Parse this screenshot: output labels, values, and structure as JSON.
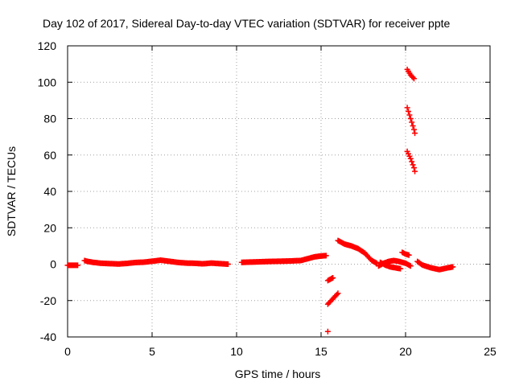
{
  "chart_data": {
    "type": "scatter",
    "title": "Day 102 of 2017, Sidereal Day-to-day VTEC variation (SDTVAR) for receiver ppte",
    "xlabel": "GPS time / hours",
    "ylabel": "SDTVAR / TECUs",
    "xlim": [
      0,
      25
    ],
    "ylim": [
      -40,
      120
    ],
    "xticks": [
      "0",
      "5",
      "10",
      "15",
      "20",
      "25"
    ],
    "yticks": [
      "-40",
      "-20",
      "0",
      "20",
      "40",
      "60",
      "80",
      "100",
      "120"
    ],
    "grid": true,
    "marker": "+",
    "color": "#ff0000",
    "series": [
      {
        "name": "SDTVAR",
        "segments": [
          [
            [
              0.0,
              -0.6
            ],
            [
              0.3,
              -0.6
            ],
            [
              0.6,
              -0.6
            ]
          ],
          [
            [
              1.0,
              2.0
            ],
            [
              1.2,
              1.5
            ],
            [
              1.5,
              1.0
            ],
            [
              2.0,
              0.5
            ],
            [
              2.5,
              0.3
            ],
            [
              3.0,
              0.1
            ],
            [
              3.5,
              0.4
            ],
            [
              4.0,
              0.9
            ],
            [
              4.5,
              1.1
            ],
            [
              5.0,
              1.6
            ],
            [
              5.5,
              2.2
            ],
            [
              6.0,
              1.6
            ],
            [
              6.5,
              1.0
            ],
            [
              7.0,
              0.6
            ],
            [
              7.5,
              0.5
            ],
            [
              8.0,
              0.2
            ],
            [
              8.5,
              0.6
            ],
            [
              9.0,
              0.3
            ],
            [
              9.5,
              0.0
            ]
          ],
          [
            [
              10.3,
              1.0
            ],
            [
              11.0,
              1.2
            ],
            [
              12.0,
              1.5
            ],
            [
              13.0,
              1.7
            ],
            [
              13.8,
              2.0
            ],
            [
              14.2,
              3.0
            ],
            [
              14.6,
              4.0
            ],
            [
              15.0,
              4.5
            ],
            [
              15.3,
              4.7
            ]
          ],
          [
            [
              15.4,
              -9
            ],
            [
              15.6,
              -8
            ],
            [
              15.7,
              -7.5
            ]
          ],
          [
            [
              15.4,
              -22
            ],
            [
              15.6,
              -20
            ],
            [
              15.8,
              -18
            ],
            [
              16.0,
              -16
            ]
          ],
          [
            [
              15.4,
              -37
            ]
          ],
          [
            [
              16.0,
              13
            ],
            [
              16.4,
              11
            ],
            [
              16.8,
              10
            ],
            [
              17.2,
              8.5
            ],
            [
              17.6,
              6.0
            ],
            [
              17.8,
              4.0
            ],
            [
              18.0,
              2.0
            ],
            [
              18.3,
              0.5
            ]
          ],
          [
            [
              18.4,
              -1
            ],
            [
              18.7,
              0.5
            ],
            [
              19.0,
              1.5
            ],
            [
              19.3,
              2.0
            ],
            [
              19.6,
              1.5
            ],
            [
              20.0,
              0.5
            ],
            [
              20.3,
              -1
            ]
          ],
          [
            [
              18.5,
              1
            ],
            [
              18.8,
              -0.5
            ],
            [
              19.1,
              -1.5
            ],
            [
              19.4,
              -2.0
            ],
            [
              19.7,
              -2.5
            ]
          ],
          [
            [
              19.8,
              6.5
            ],
            [
              20.0,
              5.5
            ],
            [
              20.2,
              5.0
            ]
          ],
          [
            [
              20.1,
              107
            ],
            [
              20.3,
              104
            ],
            [
              20.5,
              102
            ]
          ],
          [
            [
              20.1,
              86
            ],
            [
              20.3,
              80
            ],
            [
              20.5,
              74
            ],
            [
              20.55,
              72
            ]
          ],
          [
            [
              20.1,
              62
            ],
            [
              20.3,
              58
            ],
            [
              20.5,
              53
            ],
            [
              20.55,
              51
            ]
          ],
          [
            [
              20.7,
              1.5
            ],
            [
              21.0,
              -0.5
            ],
            [
              21.5,
              -2
            ],
            [
              22.0,
              -3
            ],
            [
              22.5,
              -2
            ],
            [
              22.8,
              -1.5
            ]
          ]
        ]
      }
    ]
  }
}
